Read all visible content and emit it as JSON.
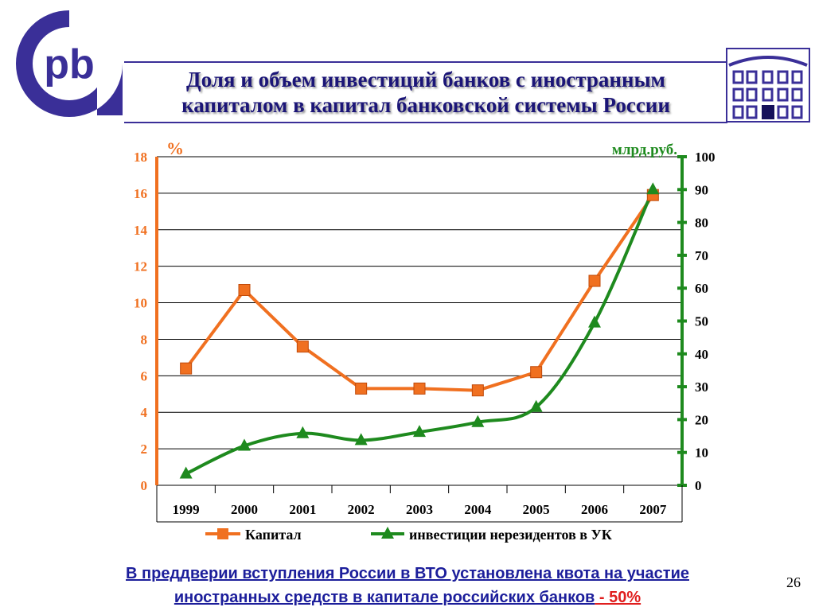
{
  "header": {
    "title_line1": "Доля и объем инвестиций банков с иностранным",
    "title_line2": "капиталом в капитал банковской системы России"
  },
  "colors": {
    "brand": "#3a2f98",
    "capital_series": "#f07020",
    "investment_series": "#1e8a1e",
    "footer_text": "#1c1e9b",
    "highlight": "#e01e1e"
  },
  "icons": {
    "logo": "bank-logo-pb",
    "building": "bank-building-icon"
  },
  "chart_data": {
    "type": "line",
    "categories": [
      "1999",
      "2000",
      "2001",
      "2002",
      "2003",
      "2004",
      "2005",
      "2006",
      "2007"
    ],
    "left_axis": {
      "unit_label": "%",
      "ylim": [
        0,
        18
      ],
      "ticks": [
        0,
        2,
        4,
        6,
        8,
        10,
        12,
        14,
        16,
        18
      ]
    },
    "right_axis": {
      "unit_label": "млрд.руб.",
      "ylim": [
        0,
        100
      ],
      "ticks": [
        0,
        10,
        20,
        30,
        40,
        50,
        60,
        70,
        80,
        90,
        100
      ]
    },
    "series": [
      {
        "name": "Капитал",
        "axis": "left",
        "marker": "square",
        "smooth": false,
        "values": [
          6.4,
          10.7,
          7.6,
          5.3,
          5.3,
          5.2,
          6.2,
          11.2,
          15.9
        ]
      },
      {
        "name": "инвестиции нерезидентов в УК",
        "axis": "right",
        "marker": "triangle",
        "smooth": true,
        "values": [
          3.5,
          12,
          15.8,
          13.7,
          16.2,
          19.2,
          23.8,
          49.5,
          90
        ]
      }
    ],
    "grid": true,
    "legend_position": "bottom"
  },
  "footer": {
    "line1": "В преддверии вступления России в ВТО  установлена квота на участие",
    "line2_main": "иностранных средств  в капитале российских банков",
    "line2_highlight": "  - 50%"
  },
  "page_number": "26"
}
